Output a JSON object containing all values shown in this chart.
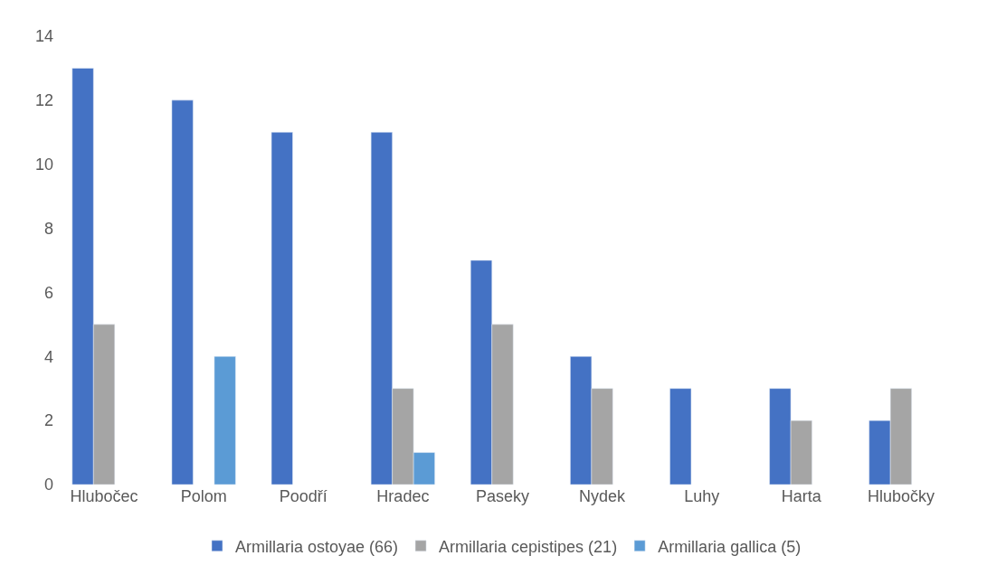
{
  "chart_data": {
    "type": "bar",
    "categories": [
      "Hlubočec",
      "Polom",
      "Poodří",
      "Hradec",
      "Paseky",
      "Nydek",
      "Luhy",
      "Harta",
      "Hlubočky"
    ],
    "series": [
      {
        "name": "Armillaria ostoyae (66)",
        "color": "#4472c4",
        "values": [
          13,
          12,
          11,
          11,
          7,
          4,
          3,
          3,
          2
        ]
      },
      {
        "name": "Armillaria cepistipes (21)",
        "color": "#a5a5a5",
        "values": [
          5,
          null,
          null,
          3,
          5,
          3,
          null,
          2,
          3
        ]
      },
      {
        "name": "Armillaria gallica (5)",
        "color": "#5b9bd5",
        "values": [
          null,
          4,
          null,
          1,
          null,
          null,
          null,
          null,
          null
        ]
      }
    ],
    "ylim": [
      0,
      14
    ],
    "yticks": [
      0,
      2,
      4,
      6,
      8,
      10,
      12,
      14
    ],
    "grid": false,
    "legend": "bottom"
  }
}
